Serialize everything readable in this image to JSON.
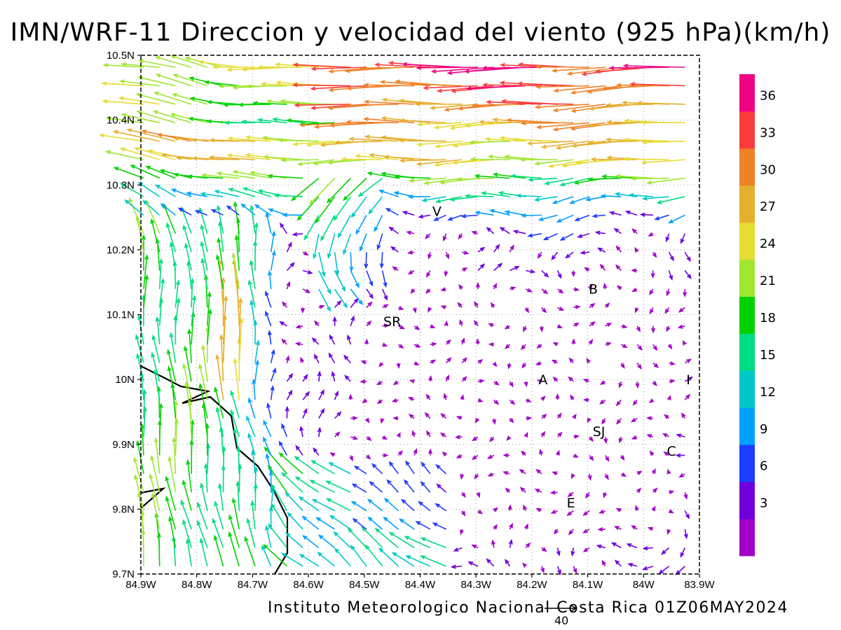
{
  "title": "IMN/WRF-11 Direccion y velocidad del viento (925 hPa)(km/h)",
  "credit": "Instituto Meteorologico Nacional Costa Rica 01Z06MAY2024",
  "reference_vector": {
    "label": "40",
    "speed_kmh": 40
  },
  "map": {
    "lon_range": [
      -84.9,
      -83.9
    ],
    "lat_range": [
      9.7,
      10.5
    ],
    "grid": "dotted",
    "x_ticks": [
      "84.9W",
      "84.8W",
      "84.7W",
      "84.6W",
      "84.5W",
      "84.4W",
      "84.3W",
      "84.2W",
      "84.1W",
      "84W",
      "83.9W"
    ],
    "y_ticks": [
      "9.7N",
      "9.8N",
      "9.9N",
      "10N",
      "10.1N",
      "10.2N",
      "10.3N",
      "10.4N",
      "10.5N"
    ],
    "places": [
      {
        "label": "V",
        "lon": -84.37,
        "lat": 10.26
      },
      {
        "label": "B",
        "lon": -84.09,
        "lat": 10.14
      },
      {
        "label": "SR",
        "lon": -84.45,
        "lat": 10.09
      },
      {
        "label": "A",
        "lon": -84.18,
        "lat": 10.0
      },
      {
        "label": "I",
        "lon": -83.92,
        "lat": 10.0
      },
      {
        "label": "SJ",
        "lon": -84.08,
        "lat": 9.92
      },
      {
        "label": "C",
        "lon": -83.95,
        "lat": 9.89
      },
      {
        "label": "E",
        "lon": -84.13,
        "lat": 9.81
      }
    ]
  },
  "colorbar": {
    "colors": [
      "#a000c8",
      "#6e00dc",
      "#1e3cff",
      "#00a0ff",
      "#00c8c8",
      "#00dc82",
      "#00d200",
      "#a0e632",
      "#e6dc32",
      "#e6af2d",
      "#f08228",
      "#fa3c3c",
      "#f00082"
    ],
    "labels": [
      "3",
      "6",
      "9",
      "12",
      "15",
      "18",
      "21",
      "24",
      "27",
      "30",
      "33",
      "36"
    ]
  }
}
